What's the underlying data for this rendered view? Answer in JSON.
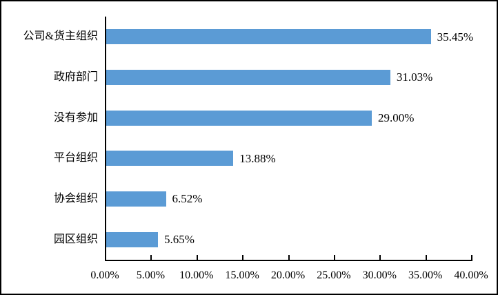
{
  "chart_data": {
    "type": "bar",
    "orientation": "horizontal",
    "title": "",
    "xlabel": "",
    "ylabel": "",
    "categories": [
      "公司&货主组织",
      "政府部门",
      "没有参加",
      "平台组织",
      "协会组织",
      "园区组织"
    ],
    "values": [
      35.45,
      31.03,
      29.0,
      13.88,
      6.52,
      5.65
    ],
    "value_labels": [
      "35.45%",
      "31.03%",
      "29.00%",
      "13.88%",
      "6.52%",
      "5.65%"
    ],
    "xlim": [
      0,
      40
    ],
    "x_tick_step": 5,
    "x_tick_labels": [
      "0.00%",
      "5.00%",
      "10.00%",
      "15.00%",
      "20.00%",
      "25.00%",
      "30.00%",
      "35.00%",
      "40.00%"
    ],
    "grid": false,
    "legend": false,
    "tick_direction": "inside"
  },
  "colors": {
    "bar": "#5B9BD5",
    "axis": "#000000",
    "text": "#000000",
    "frame_border": "#000000",
    "background": "#ffffff"
  }
}
